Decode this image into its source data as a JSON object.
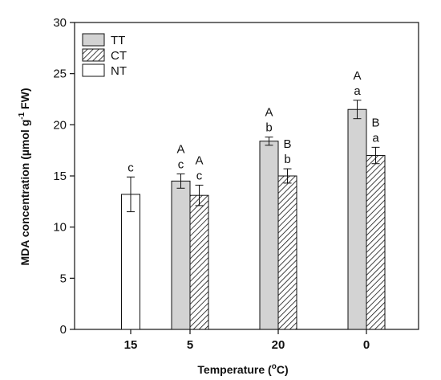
{
  "chart_data": {
    "type": "bar",
    "xlabel_parts": [
      "Temperature (",
      "o",
      "C)"
    ],
    "ylabel_parts": [
      "MDA concentration (µmol g",
      "-1",
      " FW)"
    ],
    "categories": [
      "15",
      "5",
      "20",
      "0"
    ],
    "ylim": [
      0,
      30
    ],
    "yticks": [
      0,
      5,
      10,
      15,
      20,
      25,
      30
    ],
    "grid": false,
    "legend_position": "top-left",
    "series": [
      {
        "name": "TT",
        "pattern": "solid-gray",
        "fill": "#d3d3d3",
        "values": [
          null,
          14.5,
          18.4,
          21.5
        ],
        "errors": [
          null,
          0.7,
          0.4,
          0.9
        ],
        "upper_labels": [
          null,
          "A",
          "A",
          "A"
        ],
        "lower_labels": [
          null,
          "c",
          "b",
          "a"
        ]
      },
      {
        "name": "CT",
        "pattern": "diagonal-hatch",
        "fill": "#ffffff",
        "values": [
          null,
          13.1,
          15.0,
          17.0
        ],
        "errors": [
          null,
          1.0,
          0.7,
          0.8
        ],
        "upper_labels": [
          null,
          "A",
          "B",
          "B"
        ],
        "lower_labels": [
          null,
          "c",
          "b",
          "a"
        ]
      },
      {
        "name": "NT",
        "pattern": "open",
        "fill": "#ffffff",
        "values": [
          13.2,
          null,
          null,
          null
        ],
        "errors": [
          1.7,
          null,
          null,
          null
        ],
        "upper_labels": [
          null,
          null,
          null,
          null
        ],
        "lower_labels": [
          "c",
          null,
          null,
          null
        ]
      }
    ]
  }
}
